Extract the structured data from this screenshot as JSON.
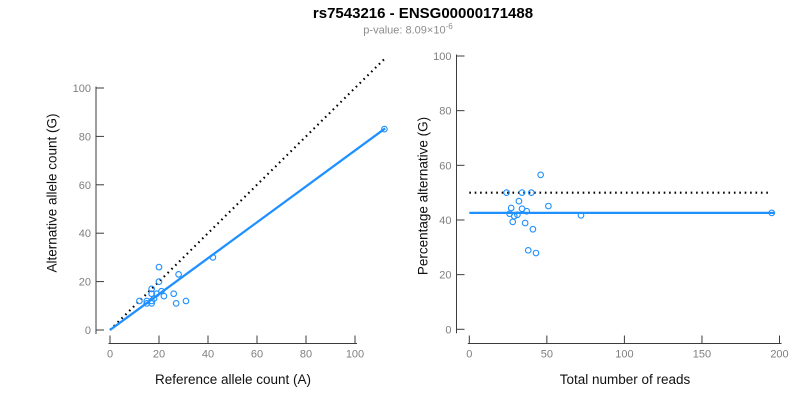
{
  "header": {
    "title": "rs7543216 - ENSG00000171488",
    "subtitle_base": "p-value: 8.09×10",
    "subtitle_exponent": "-6"
  },
  "colors": {
    "accent_blue": "#1E90FF",
    "dotted_line": "#000000",
    "tick_label": "#7f7f7f",
    "axis_line": "#3c3c3c"
  },
  "chart_data": [
    {
      "id": "allele-counts",
      "type": "scatter",
      "xlabel": "Reference allele count (A)",
      "ylabel": "Alternative allele count (G)",
      "xticks": [
        0,
        20,
        40,
        60,
        80,
        100
      ],
      "yticks": [
        0,
        20,
        40,
        60,
        80,
        100
      ],
      "xlim": [
        0,
        113
      ],
      "ylim": [
        0,
        113
      ],
      "grid": false,
      "legend": "none",
      "points": [
        [
          12,
          12
        ],
        [
          15,
          11
        ],
        [
          15,
          12
        ],
        [
          17,
          11
        ],
        [
          17,
          12
        ],
        [
          18,
          13
        ],
        [
          17,
          15
        ],
        [
          17,
          17
        ],
        [
          19,
          15
        ],
        [
          22,
          14
        ],
        [
          21,
          16
        ],
        [
          27,
          11
        ],
        [
          20,
          20
        ],
        [
          26,
          15
        ],
        [
          31,
          12
        ],
        [
          20,
          26
        ],
        [
          28,
          23
        ],
        [
          42,
          30
        ],
        [
          112,
          83
        ]
      ],
      "lines": [
        {
          "name": "identity-dotted-line",
          "style": "dotted",
          "color": "#000000",
          "x1": 0,
          "y1": 0,
          "x2": 112.7,
          "y2": 112.7
        },
        {
          "name": "regression-line",
          "style": "solid",
          "color": "#1E90FF",
          "x1": 0,
          "y1": 0,
          "x2": 112.3,
          "y2": 83.3
        }
      ]
    },
    {
      "id": "percentage-alternative",
      "type": "scatter",
      "xlabel": "Total number of reads",
      "ylabel": "Percentage alternative (G)",
      "xticks": [
        0,
        50,
        100,
        150,
        200
      ],
      "yticks": [
        0,
        20,
        40,
        60,
        80,
        100
      ],
      "xlim": [
        0,
        200
      ],
      "ylim": [
        0,
        104
      ],
      "grid": false,
      "legend": "none",
      "points": [
        [
          24,
          50
        ],
        [
          26,
          42.3
        ],
        [
          27,
          44.4
        ],
        [
          28,
          39.3
        ],
        [
          29,
          41.4
        ],
        [
          31,
          41.9
        ],
        [
          32,
          46.9
        ],
        [
          34,
          50
        ],
        [
          34,
          44.1
        ],
        [
          36,
          38.9
        ],
        [
          37,
          43.2
        ],
        [
          38,
          28.9
        ],
        [
          40,
          50
        ],
        [
          41,
          36.6
        ],
        [
          43,
          27.9
        ],
        [
          46,
          56.5
        ],
        [
          51,
          45.1
        ],
        [
          72,
          41.7
        ],
        [
          195,
          42.6
        ]
      ],
      "lines": [
        {
          "name": "expected-50pct-dotted-line",
          "style": "dotted",
          "color": "#000000",
          "x1": 0,
          "y1": 50,
          "x2": 193,
          "y2": 50
        },
        {
          "name": "mean-percentage-line",
          "style": "solid",
          "color": "#1E90FF",
          "x1": 0,
          "y1": 42.6,
          "x2": 197,
          "y2": 42.6
        }
      ]
    }
  ]
}
